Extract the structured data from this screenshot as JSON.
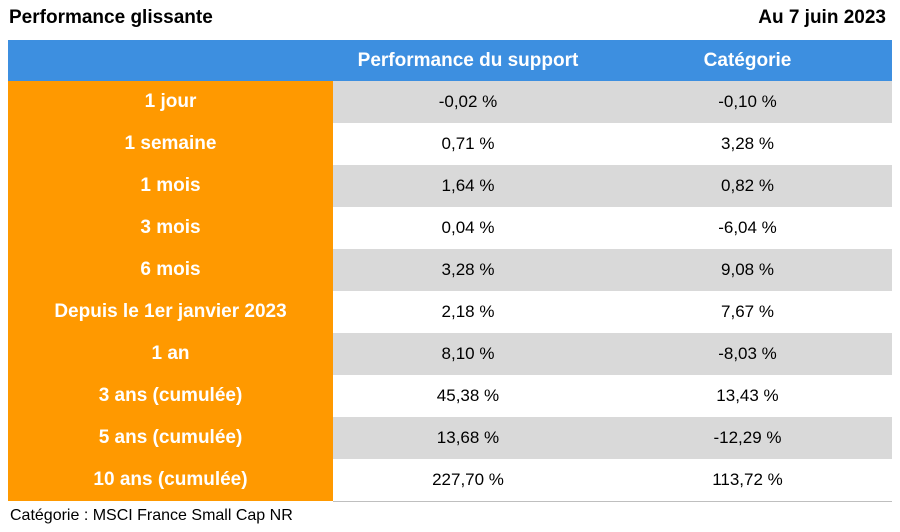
{
  "header": {
    "title": "Performance glissante",
    "date": "Au 7 juin 2023"
  },
  "colors": {
    "header_blue": "#3d8fe0",
    "period_orange": "#ff9900",
    "row_gray": "#d9d9d9",
    "row_white": "#ffffff"
  },
  "chart_data": {
    "type": "table",
    "columns": [
      "",
      "Performance du support",
      "Catégorie"
    ],
    "rows": [
      {
        "period": "1 jour",
        "support": "-0,02 %",
        "categorie": "-0,10 %"
      },
      {
        "period": "1 semaine",
        "support": "0,71 %",
        "categorie": "3,28 %"
      },
      {
        "period": "1 mois",
        "support": "1,64 %",
        "categorie": "0,82 %"
      },
      {
        "period": "3 mois",
        "support": "0,04 %",
        "categorie": "-6,04 %"
      },
      {
        "period": "6 mois",
        "support": "3,28 %",
        "categorie": "9,08 %"
      },
      {
        "period": "Depuis le 1er janvier 2023",
        "support": "2,18 %",
        "categorie": "7,67 %"
      },
      {
        "period": "1 an",
        "support": "8,10 %",
        "categorie": "-8,03 %"
      },
      {
        "period": "3 ans (cumulée)",
        "support": "45,38 %",
        "categorie": "13,43 %"
      },
      {
        "period": "5 ans (cumulée)",
        "support": "13,68 %",
        "categorie": "-12,29 %"
      },
      {
        "period": "10 ans (cumulée)",
        "support": "227,70 %",
        "categorie": "113,72 %"
      }
    ]
  },
  "footnote": "Catégorie : MSCI France Small Cap NR"
}
